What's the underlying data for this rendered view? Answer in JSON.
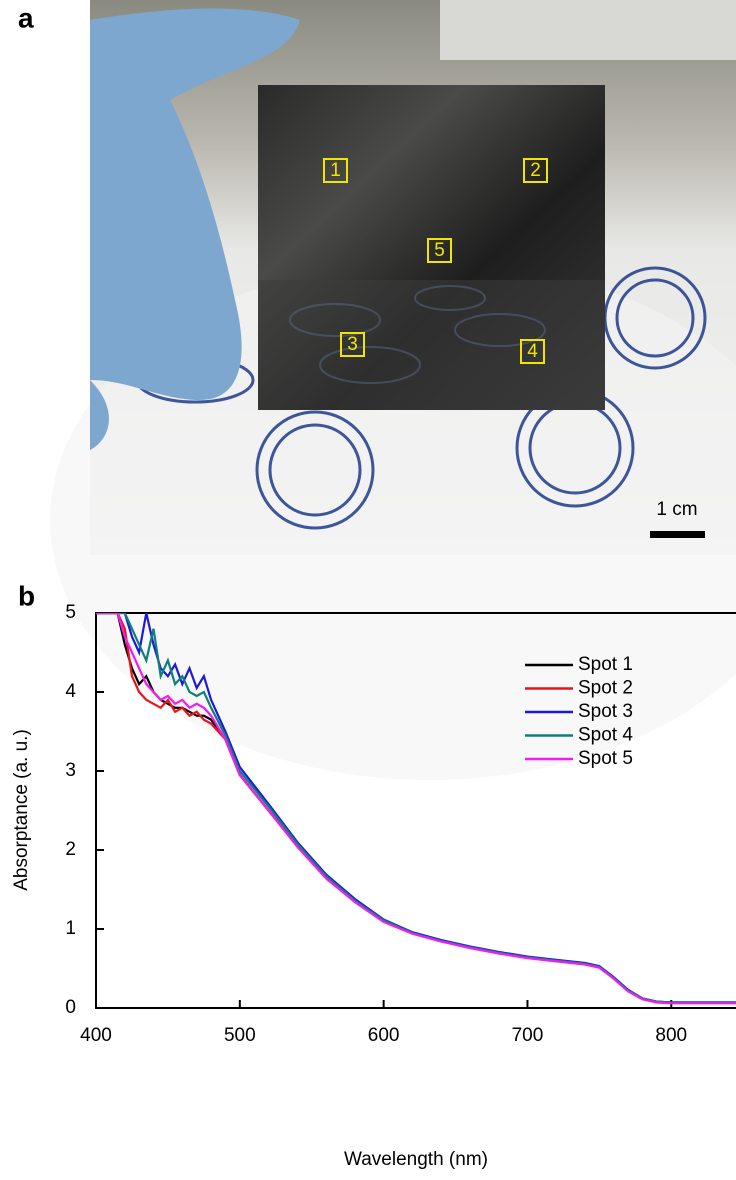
{
  "photo": {
    "label": "a",
    "spots": [
      "1",
      "2",
      "3",
      "4",
      "5"
    ],
    "scale_bar": "1 cm"
  },
  "chart_data": {
    "type": "line",
    "panel_label": "b",
    "xlabel": "Wavelength (nm)",
    "ylabel": "Absorptance (a. u.)",
    "x": [
      400,
      410,
      415,
      420,
      425,
      430,
      435,
      440,
      445,
      450,
      455,
      460,
      465,
      470,
      475,
      480,
      490,
      500,
      520,
      540,
      560,
      580,
      600,
      620,
      640,
      660,
      680,
      700,
      720,
      740,
      750,
      760,
      770,
      780,
      790,
      800,
      820,
      845
    ],
    "series": [
      {
        "name": "Spot 1",
        "color": "#000000",
        "values": [
          5,
          5,
          5,
          4.6,
          4.3,
          4.1,
          4.2,
          4.0,
          3.9,
          3.85,
          3.8,
          3.8,
          3.75,
          3.7,
          3.7,
          3.65,
          3.4,
          2.95,
          2.5,
          2.05,
          1.65,
          1.35,
          1.1,
          0.95,
          0.85,
          0.77,
          0.7,
          0.64,
          0.6,
          0.56,
          0.52,
          0.38,
          0.22,
          0.12,
          0.08,
          0.07,
          0.07,
          0.07
        ]
      },
      {
        "name": "Spot 2",
        "color": "#e8141b",
        "values": [
          5,
          5,
          5,
          4.8,
          4.2,
          4.0,
          3.9,
          3.85,
          3.8,
          3.9,
          3.75,
          3.8,
          3.7,
          3.75,
          3.65,
          3.6,
          3.4,
          2.95,
          2.5,
          2.05,
          1.65,
          1.35,
          1.1,
          0.95,
          0.85,
          0.77,
          0.7,
          0.64,
          0.6,
          0.56,
          0.52,
          0.38,
          0.22,
          0.12,
          0.08,
          0.07,
          0.07,
          0.07
        ]
      },
      {
        "name": "Spot 3",
        "color": "#1a1adc",
        "values": [
          5,
          5,
          5,
          5,
          4.7,
          4.5,
          5.0,
          4.6,
          4.3,
          4.2,
          4.35,
          4.1,
          4.3,
          4.05,
          4.2,
          3.9,
          3.5,
          3.05,
          2.58,
          2.1,
          1.69,
          1.38,
          1.12,
          0.96,
          0.86,
          0.78,
          0.71,
          0.65,
          0.61,
          0.57,
          0.53,
          0.39,
          0.23,
          0.12,
          0.08,
          0.07,
          0.07,
          0.07
        ]
      },
      {
        "name": "Spot 4",
        "color": "#0f8078",
        "values": [
          5,
          5,
          5,
          5,
          4.8,
          4.6,
          4.4,
          4.8,
          4.2,
          4.4,
          4.1,
          4.2,
          4.0,
          3.95,
          4.0,
          3.8,
          3.45,
          3.0,
          2.55,
          2.08,
          1.67,
          1.36,
          1.11,
          0.95,
          0.85,
          0.77,
          0.7,
          0.64,
          0.6,
          0.56,
          0.52,
          0.38,
          0.22,
          0.12,
          0.08,
          0.07,
          0.07,
          0.07
        ]
      },
      {
        "name": "Spot 5",
        "color": "#f01cf0",
        "values": [
          5,
          5,
          5,
          4.7,
          4.5,
          4.3,
          4.1,
          4.0,
          3.9,
          3.95,
          3.85,
          3.9,
          3.8,
          3.85,
          3.8,
          3.7,
          3.4,
          2.95,
          2.5,
          2.04,
          1.64,
          1.34,
          1.09,
          0.94,
          0.84,
          0.76,
          0.69,
          0.63,
          0.59,
          0.55,
          0.51,
          0.37,
          0.21,
          0.11,
          0.07,
          0.06,
          0.06,
          0.06
        ]
      }
    ],
    "xlim": [
      400,
      845
    ],
    "ylim": [
      0,
      5
    ],
    "xticks": [
      400,
      500,
      600,
      700,
      800
    ],
    "yticks": [
      0,
      1,
      2,
      3,
      4,
      5
    ],
    "legend": "upper right",
    "grid": false
  }
}
